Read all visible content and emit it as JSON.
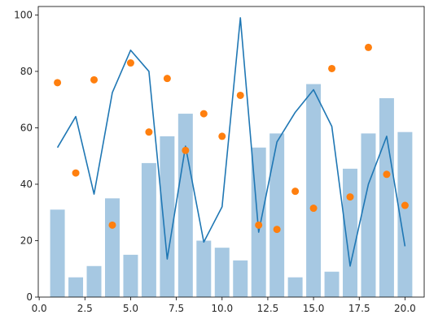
{
  "chart_data": {
    "type": "bar",
    "title": "",
    "xlabel": "",
    "ylabel": "",
    "xlim": [
      -0.05,
      21.05
    ],
    "ylim": [
      0,
      103
    ],
    "grid": false,
    "x": [
      1,
      2,
      3,
      4,
      5,
      6,
      7,
      8,
      9,
      10,
      11,
      12,
      13,
      14,
      15,
      16,
      17,
      18,
      19,
      20
    ],
    "x_ticks": [
      0.0,
      2.5,
      5.0,
      7.5,
      10.0,
      12.5,
      15.0,
      17.5,
      20.0
    ],
    "x_tick_labels": [
      "0.0",
      "2.5",
      "5.0",
      "7.5",
      "10.0",
      "12.5",
      "15.0",
      "17.5",
      "20.0"
    ],
    "y_ticks": [
      0,
      20,
      40,
      60,
      80,
      100
    ],
    "y_tick_labels": [
      "0",
      "20",
      "40",
      "60",
      "80",
      "100"
    ],
    "series": [
      {
        "kind": "bar",
        "color": "#a6c8e2",
        "values": [
          31,
          7,
          11,
          35,
          15,
          47.5,
          57,
          65,
          20,
          17.5,
          13,
          53,
          58,
          7,
          75.5,
          9,
          45.5,
          58,
          70.5,
          58.5
        ]
      },
      {
        "kind": "line",
        "color": "#1f77b4",
        "values": [
          53,
          64,
          36.5,
          72.5,
          87.5,
          80,
          13.5,
          53.5,
          19.5,
          32,
          99,
          23,
          55,
          65.5,
          73.5,
          60.5,
          11,
          40,
          57,
          18
        ]
      },
      {
        "kind": "scatter",
        "color": "#ff7f0e",
        "values": [
          76,
          44,
          77,
          25.5,
          83,
          58.5,
          77.5,
          52,
          65,
          57,
          71.5,
          25.5,
          24,
          37.5,
          31.5,
          81,
          35.5,
          88.5,
          43.5,
          32.5
        ]
      }
    ]
  }
}
